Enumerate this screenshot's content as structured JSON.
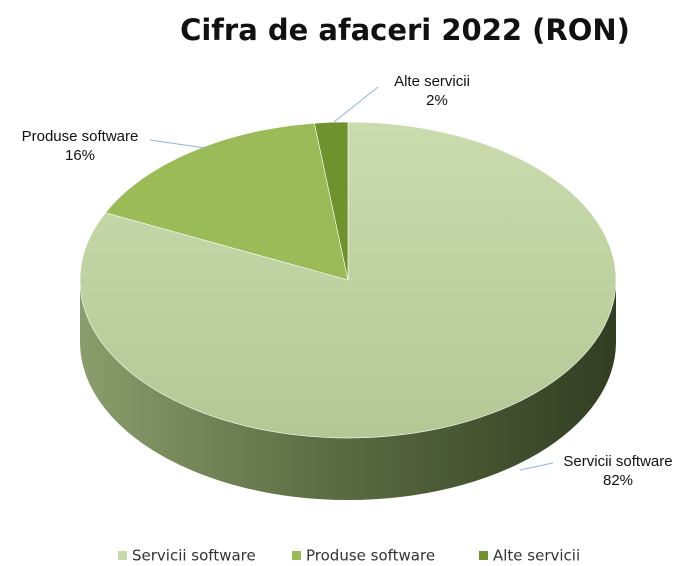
{
  "chart_data": {
    "type": "pie",
    "title": "Cifra de afaceri 2022 (RON)",
    "categories": [
      "Servicii software",
      "Produse software",
      "Alte servicii"
    ],
    "values": [
      82,
      16,
      2
    ],
    "value_labels": [
      "82%",
      "16%",
      "2%"
    ],
    "colors": [
      "#c6d9a8",
      "#9bbb59",
      "#6f922e"
    ],
    "legend": "bottom"
  }
}
